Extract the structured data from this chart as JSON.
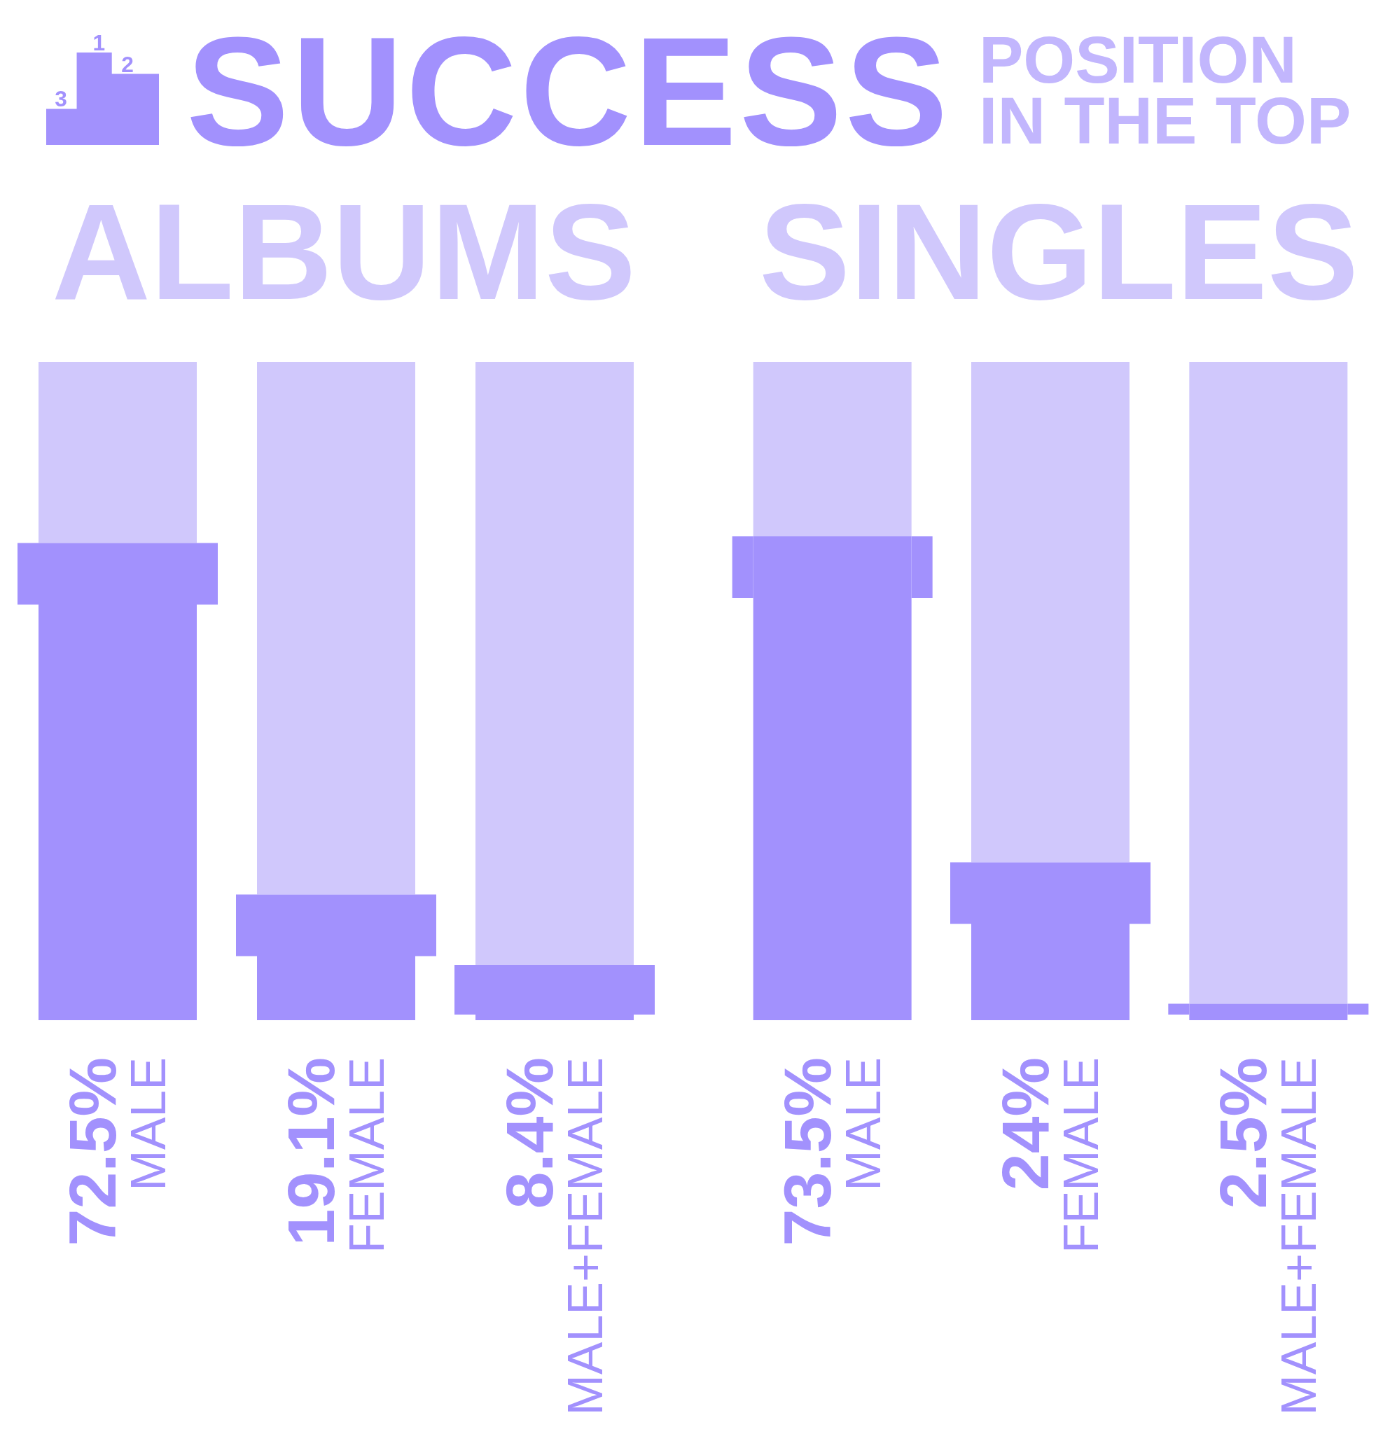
{
  "chart_data": [
    {
      "type": "other",
      "title": "SUCCESS",
      "subtitle": "POSITION IN THE TOP",
      "annotations": [
        "1",
        "2",
        "3"
      ]
    },
    {
      "type": "bar",
      "title": "ALBUMS",
      "categories": [
        "MALE",
        "FEMALE",
        "MALE+FEMALE"
      ],
      "values": [
        72.5,
        19.1,
        8.4
      ],
      "value_labels": [
        "72.5%",
        "19.1%",
        "8.4%"
      ],
      "color": "#a291fd",
      "ylim": [
        0,
        100
      ],
      "tick_labels": "x"
    },
    {
      "type": "bar",
      "title": "SINGLES",
      "categories": [
        "MALE",
        "FEMALE",
        "MALE+FEMALE"
      ],
      "values": [
        73.5,
        24,
        2.5
      ],
      "value_labels": [
        "73.5%",
        "24%",
        "2.5%"
      ],
      "color": "#a291fd",
      "ylim": [
        0,
        100
      ],
      "tick_labels": "x"
    }
  ]
}
